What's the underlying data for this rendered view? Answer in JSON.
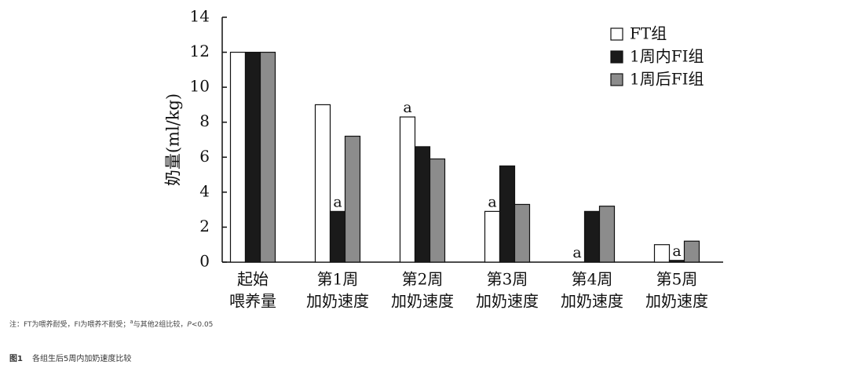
{
  "chart_data": {
    "type": "bar",
    "y_label": "奶量(ml/kg)",
    "categories": [
      [
        "起始",
        "喂养量"
      ],
      [
        "第1周",
        "加奶速度"
      ],
      [
        "第2周",
        "加奶速度"
      ],
      [
        "第3周",
        "加奶速度"
      ],
      [
        "第4周",
        "加奶速度"
      ],
      [
        "第5周",
        "加奶速度"
      ]
    ],
    "series": [
      {
        "name": "FT组",
        "color": "#ffffff",
        "values": [
          12,
          9,
          8.3,
          2.9,
          0,
          1.0
        ],
        "marks": [
          null,
          null,
          "a",
          "a",
          "a",
          null
        ]
      },
      {
        "name": "1周内FI组",
        "color": "#1a1a1a",
        "values": [
          12,
          2.9,
          6.6,
          5.5,
          2.9,
          0.1
        ],
        "marks": [
          null,
          "a",
          null,
          null,
          null,
          "a"
        ]
      },
      {
        "name": "1周后FI组",
        "color": "#8c8c8c",
        "values": [
          12,
          7.2,
          5.9,
          3.3,
          3.2,
          1.2
        ],
        "marks": [
          null,
          null,
          null,
          null,
          null,
          null
        ]
      }
    ],
    "ylim": [
      0,
      14
    ],
    "yticks": [
      0,
      2,
      4,
      6,
      8,
      10,
      12,
      14
    ],
    "legend": "top-right"
  },
  "note": [
    "注：FT为喂养耐受，FI为喂养不耐受；",
    "a",
    "与其他2组比较，",
    "P",
    "<0.05"
  ],
  "caption": {
    "label": "图1",
    "text": "各组生后5周内加奶速度比较"
  }
}
